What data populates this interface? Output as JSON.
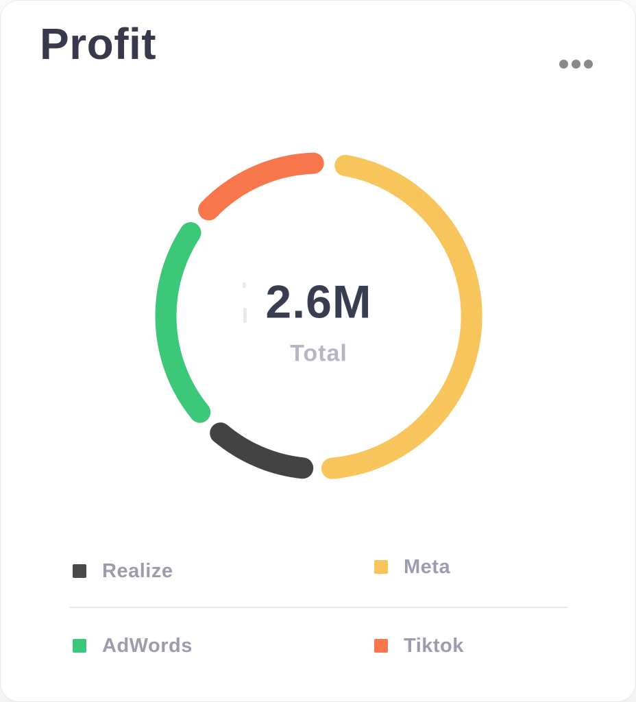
{
  "header": {
    "title": "Profit",
    "menu_icon": "ellipsis-horizontal-icon"
  },
  "chart_data": {
    "type": "pie",
    "donut": true,
    "title": "Profit",
    "center_value": "2.6M",
    "center_label": "Total",
    "legend_position": "bottom",
    "series": [
      {
        "name": "Meta",
        "color": "#F8C55D",
        "percent_est": 49.0,
        "start_deg": 10,
        "end_deg": 175
      },
      {
        "name": "Realize",
        "color": "#434343",
        "percent_est": 12.5,
        "start_deg": 186,
        "end_deg": 220
      },
      {
        "name": "AdWords",
        "color": "#3DC778",
        "percent_est": 23.0,
        "start_deg": 231,
        "end_deg": 303
      },
      {
        "name": "Tiktok",
        "color": "#F8764B",
        "percent_est": 15.5,
        "start_deg": 314,
        "end_deg": 358
      }
    ]
  },
  "legend": {
    "items": [
      {
        "label": "Realize",
        "color": "#4A4A4A"
      },
      {
        "label": "Meta",
        "color": "#F8C55D"
      },
      {
        "label": "AdWords",
        "color": "#3DC778"
      },
      {
        "label": "Tiktok",
        "color": "#F8764B"
      }
    ]
  },
  "colors": {
    "card_background": "#FFFFFF",
    "title_text": "#383A4C",
    "center_value_text": "#3A3D50",
    "center_label_text": "#B4B6C3",
    "legend_label_text": "#9B9CAD",
    "divider": "#EBEBEB",
    "menu_dots": "#8A8A8A"
  }
}
